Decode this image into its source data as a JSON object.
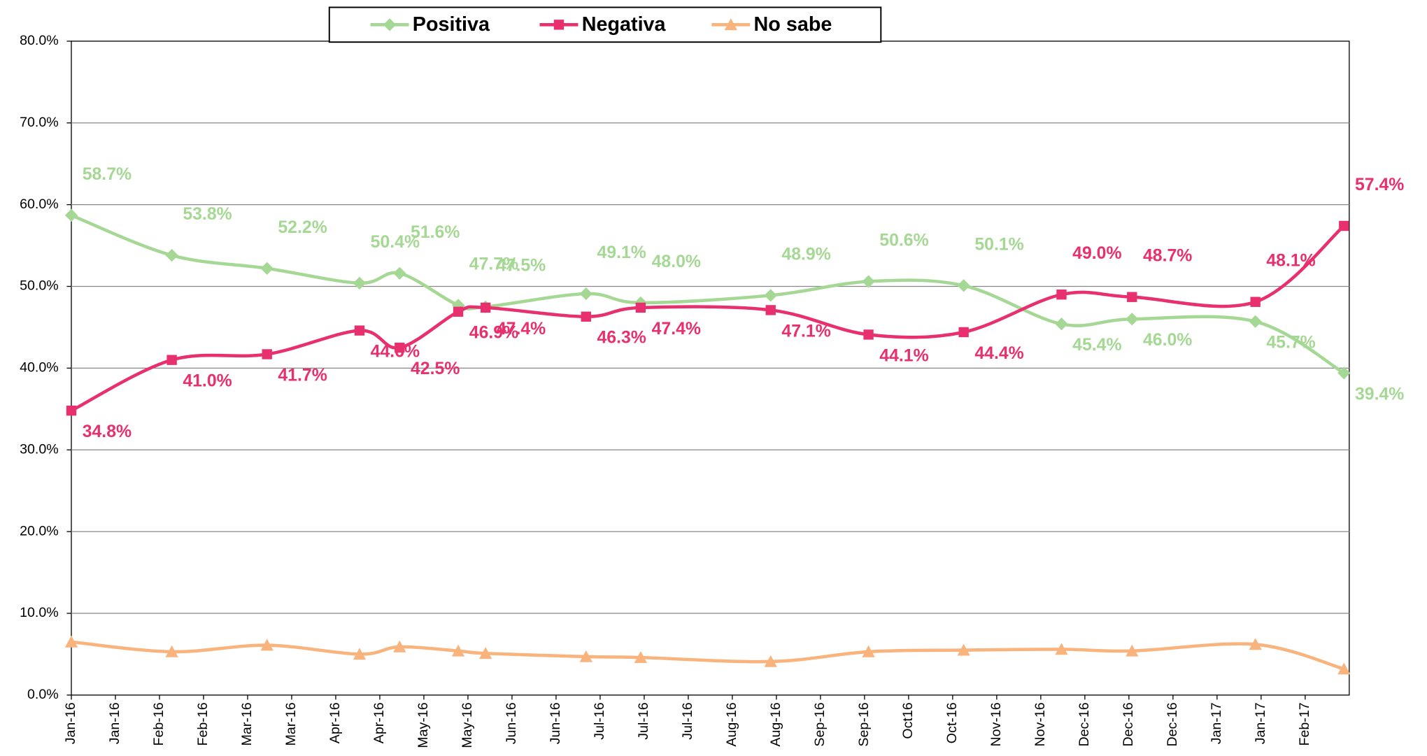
{
  "chart_data": {
    "type": "line",
    "x": [
      0,
      2.28,
      4.44,
      6.54,
      7.45,
      8.78,
      9.4,
      11.68,
      12.92,
      15.87,
      18.09,
      20.25,
      22.47,
      24.07,
      26.87,
      28.88
    ],
    "series": [
      {
        "name": "Positiva",
        "color": "#a6d895",
        "marker": "diamond",
        "values": [
          58.7,
          53.8,
          52.2,
          50.4,
          51.6,
          47.7,
          47.5,
          49.1,
          48.0,
          48.9,
          50.6,
          50.1,
          45.4,
          46.0,
          45.7,
          39.4
        ],
        "value_labels": [
          "58.7%",
          "53.8%",
          "52.2%",
          "50.4%",
          "51.6%",
          "47.7%",
          "47.5%",
          "49.1%",
          "48.0%",
          "48.9%",
          "50.6%",
          "50.1%",
          "45.4%",
          "46.0%",
          "45.7%",
          "39.4%"
        ]
      },
      {
        "name": "Negativa",
        "color": "#e8306e",
        "marker": "square",
        "values": [
          34.8,
          41.0,
          41.7,
          44.6,
          42.5,
          46.9,
          47.4,
          46.3,
          47.4,
          47.1,
          44.1,
          44.4,
          49.0,
          48.7,
          48.1,
          57.4
        ],
        "value_labels": [
          "34.8%",
          "41.0%",
          "41.7%",
          "44.6%",
          "42.5%",
          "46.9%",
          "47.4%",
          "46.3%",
          "47.4%",
          "47.1%",
          "44.1%",
          "44.4%",
          "49.0%",
          "48.7%",
          "48.1%",
          "57.4%"
        ]
      },
      {
        "name": "No sabe",
        "color": "#f9b47e",
        "marker": "triangle",
        "values": [
          6.5,
          5.3,
          6.1,
          5.0,
          5.9,
          5.4,
          5.1,
          4.7,
          4.6,
          4.1,
          5.3,
          5.5,
          5.6,
          5.4,
          6.2,
          3.2
        ]
      }
    ],
    "xlim": [
      0,
      29
    ],
    "xticks": [
      {
        "value": 0,
        "label": "Jan-16"
      },
      {
        "value": 1,
        "label": "Jan-16"
      },
      {
        "value": 2,
        "label": "Feb-16"
      },
      {
        "value": 3,
        "label": "Feb-16"
      },
      {
        "value": 4,
        "label": "Mar-16"
      },
      {
        "value": 5,
        "label": "Mar-16"
      },
      {
        "value": 6,
        "label": "Apr-16"
      },
      {
        "value": 7,
        "label": "Apr-16"
      },
      {
        "value": 8,
        "label": "May-16"
      },
      {
        "value": 9,
        "label": "May-16"
      },
      {
        "value": 10,
        "label": "Jun-16"
      },
      {
        "value": 11,
        "label": "Jun-16"
      },
      {
        "value": 12,
        "label": "Jul-16"
      },
      {
        "value": 13,
        "label": "Jul-16"
      },
      {
        "value": 14,
        "label": "Jul-16"
      },
      {
        "value": 15,
        "label": "Aug-16"
      },
      {
        "value": 16,
        "label": "Aug-16"
      },
      {
        "value": 17,
        "label": "Sep-16"
      },
      {
        "value": 18,
        "label": "Sep-16"
      },
      {
        "value": 19,
        "label": "Oct16"
      },
      {
        "value": 20,
        "label": "Oct-16"
      },
      {
        "value": 21,
        "label": "Nov-16"
      },
      {
        "value": 22,
        "label": "Nov-16"
      },
      {
        "value": 23,
        "label": "Dec-16"
      },
      {
        "value": 24,
        "label": "Dec-16"
      },
      {
        "value": 25,
        "label": "Dec-16"
      },
      {
        "value": 26,
        "label": "Jan-17"
      },
      {
        "value": 27,
        "label": "Jan-17"
      },
      {
        "value": 28,
        "label": "Feb-17"
      }
    ],
    "ylim": [
      0,
      80
    ],
    "yticks": [
      {
        "value": 0,
        "label": "0.0%"
      },
      {
        "value": 10,
        "label": "10.0%"
      },
      {
        "value": 20,
        "label": "20.0%"
      },
      {
        "value": 30,
        "label": "30.0%"
      },
      {
        "value": 40,
        "label": "40.0%"
      },
      {
        "value": 50,
        "label": "50.0%"
      },
      {
        "value": 60,
        "label": "60.0%"
      },
      {
        "value": 70,
        "label": "70.0%"
      },
      {
        "value": 80,
        "label": "80.0%"
      }
    ],
    "grid": true,
    "legend": "top"
  }
}
